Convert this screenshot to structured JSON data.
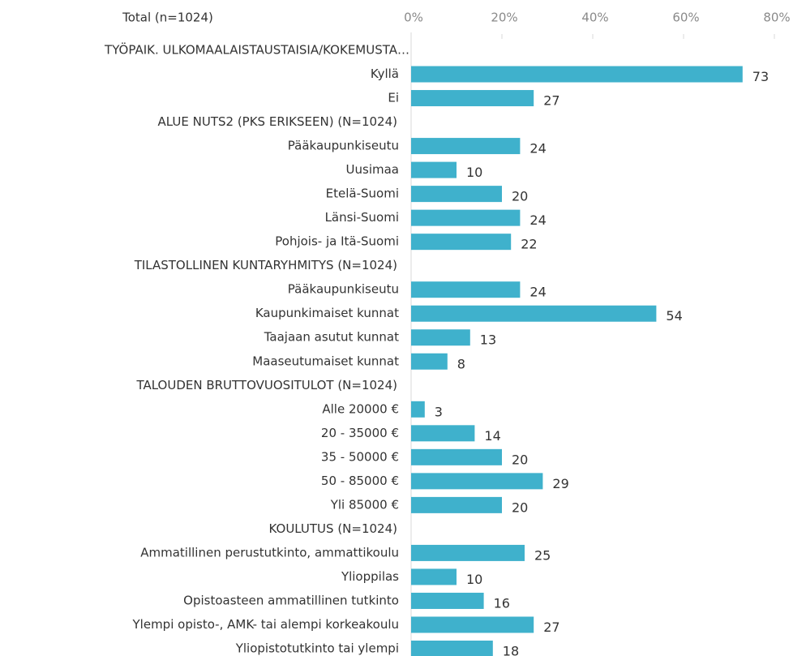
{
  "chart_data": {
    "type": "bar",
    "orientation": "horizontal",
    "title": "Total (n=1024)",
    "color": "#3fb1cc",
    "xlim": [
      0,
      80
    ],
    "xticks": [
      {
        "value": 0,
        "label": "0%"
      },
      {
        "value": 20,
        "label": "20%"
      },
      {
        "value": 40,
        "label": "40%"
      },
      {
        "value": 60,
        "label": "60%"
      },
      {
        "value": 80,
        "label": "80%"
      }
    ],
    "groups": [
      {
        "name": "TYÖPAIK. ULKOMAALAISTAUSTAISIA/KOKEMUSTA…",
        "categories": [
          "Kyllä",
          "Ei"
        ],
        "values": [
          73,
          27
        ]
      },
      {
        "name": "ALUE NUTS2 (PKS ERIKSEEN) (N=1024)",
        "categories": [
          "Pääkaupunkiseutu",
          "Uusimaa",
          "Etelä-Suomi",
          "Länsi-Suomi",
          "Pohjois- ja Itä-Suomi"
        ],
        "values": [
          24,
          10,
          20,
          24,
          22
        ]
      },
      {
        "name": "TILASTOLLINEN KUNTARYHMITYS (N=1024)",
        "categories": [
          "Pääkaupunkiseutu",
          "Kaupunkimaiset kunnat",
          "Taajaan asutut kunnat",
          "Maaseutumaiset kunnat"
        ],
        "values": [
          24,
          54,
          13,
          8
        ]
      },
      {
        "name": "TALOUDEN BRUTTOVUOSITULOT (N=1024)",
        "categories": [
          "Alle 20000 €",
          "20 - 35000 €",
          "35 - 50000 €",
          "50 - 85000 €",
          "Yli 85000 €"
        ],
        "values": [
          3,
          14,
          20,
          29,
          20
        ]
      },
      {
        "name": "KOULUTUS (N=1024)",
        "categories": [
          "Ammatillinen perustutkinto, ammattikoulu",
          "Ylioppilas",
          "Opistoasteen ammatillinen tutkinto",
          "Ylempi opisto-, AMK- tai alempi korkeakoulu",
          "Yliopistotutkinto tai ylempi"
        ],
        "values": [
          25,
          10,
          16,
          27,
          18
        ]
      }
    ]
  }
}
